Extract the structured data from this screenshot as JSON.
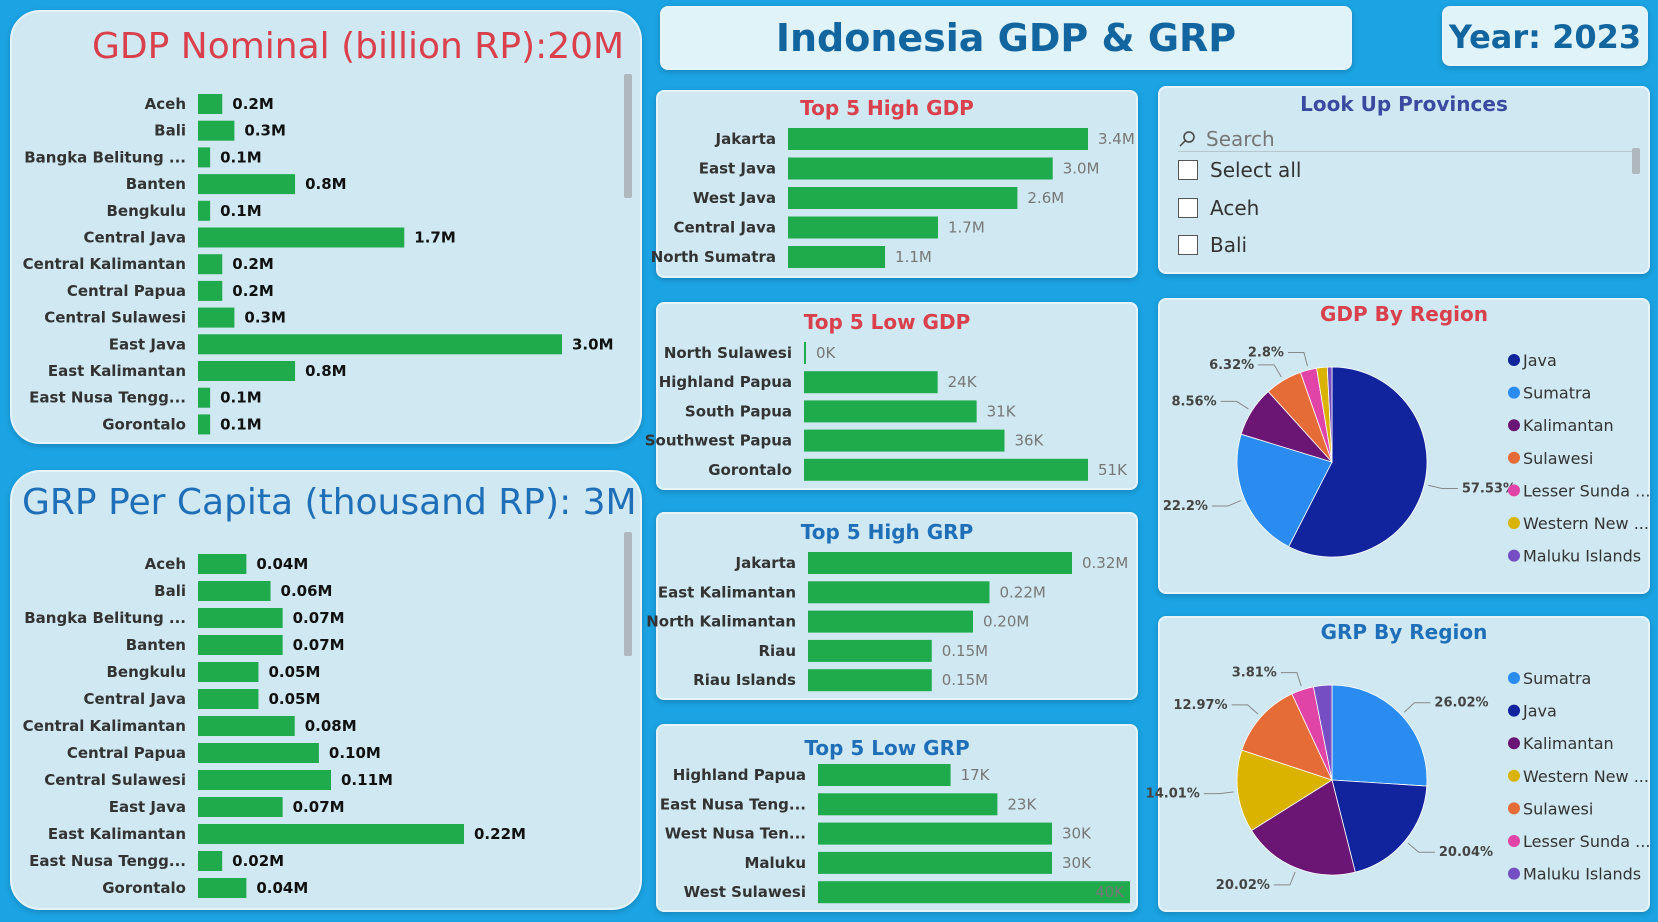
{
  "header": {
    "title": "Indonesia GDP & GRP",
    "year_label": "Year: 2023"
  },
  "gdp_nominal": {
    "title": "GDP Nominal (billion RP):20M",
    "categories": [
      "Aceh",
      "Bali",
      "Bangka Belitung ...",
      "Banten",
      "Bengkulu",
      "Central Java",
      "Central Kalimantan",
      "Central Papua",
      "Central Sulawesi",
      "East Java",
      "East Kalimantan",
      "East Nusa Tengg...",
      "Gorontalo"
    ],
    "values": [
      0.2,
      0.3,
      0.1,
      0.8,
      0.1,
      1.7,
      0.2,
      0.2,
      0.3,
      3.0,
      0.8,
      0.1,
      0.1
    ],
    "labels": [
      "0.2M",
      "0.3M",
      "0.1M",
      "0.8M",
      "0.1M",
      "1.7M",
      "0.2M",
      "0.2M",
      "0.3M",
      "3.0M",
      "0.8M",
      "0.1M",
      "0.1M"
    ]
  },
  "grp_per_capita": {
    "title": "GRP Per Capita (thousand RP): 3M",
    "categories": [
      "Aceh",
      "Bali",
      "Bangka Belitung ...",
      "Banten",
      "Bengkulu",
      "Central Java",
      "Central Kalimantan",
      "Central Papua",
      "Central Sulawesi",
      "East Java",
      "East Kalimantan",
      "East Nusa Tengg...",
      "Gorontalo"
    ],
    "values": [
      0.04,
      0.06,
      0.07,
      0.07,
      0.05,
      0.05,
      0.08,
      0.1,
      0.11,
      0.07,
      0.22,
      0.02,
      0.04
    ],
    "labels": [
      "0.04M",
      "0.06M",
      "0.07M",
      "0.07M",
      "0.05M",
      "0.05M",
      "0.08M",
      "0.10M",
      "0.11M",
      "0.07M",
      "0.22M",
      "0.02M",
      "0.04M"
    ]
  },
  "top5_high_gdp": {
    "title": "Top 5 High GDP",
    "categories": [
      "Jakarta",
      "East Java",
      "West Java",
      "Central Java",
      "North Sumatra"
    ],
    "values": [
      3.4,
      3.0,
      2.6,
      1.7,
      1.1
    ],
    "labels": [
      "3.4M",
      "3.0M",
      "2.6M",
      "1.7M",
      "1.1M"
    ]
  },
  "top5_low_gdp": {
    "title": "Top 5 Low GDP",
    "categories": [
      "North Sulawesi",
      "Highland Papua",
      "South Papua",
      "Southwest Papua",
      "Gorontalo"
    ],
    "values": [
      0,
      24,
      31,
      36,
      51
    ],
    "labels": [
      "0K",
      "24K",
      "31K",
      "36K",
      "51K"
    ]
  },
  "top5_high_grp": {
    "title": "Top 5 High GRP",
    "categories": [
      "Jakarta",
      "East Kalimantan",
      "North Kalimantan",
      "Riau",
      "Riau Islands"
    ],
    "values": [
      0.32,
      0.22,
      0.2,
      0.15,
      0.15
    ],
    "labels": [
      "0.32M",
      "0.22M",
      "0.20M",
      "0.15M",
      "0.15M"
    ]
  },
  "top5_low_grp": {
    "title": "Top 5 Low GRP",
    "categories": [
      "Highland Papua",
      "East Nusa Teng...",
      "West Nusa Ten...",
      "Maluku",
      "West Sulawesi"
    ],
    "values": [
      17,
      23,
      30,
      30,
      40
    ],
    "labels": [
      "17K",
      "23K",
      "30K",
      "30K",
      "40K"
    ]
  },
  "lookup": {
    "title": "Look Up Provinces",
    "search_placeholder": "Search",
    "items": [
      "Select all",
      "Aceh",
      "Bali"
    ]
  },
  "gdp_by_region": {
    "title": "GDP By Region",
    "slices": [
      {
        "name": "Java",
        "value": 57.53,
        "label": "57.53%",
        "color": "#12239e"
      },
      {
        "name": "Sumatra",
        "value": 22.2,
        "label": "22.2%",
        "color": "#2a8cf0"
      },
      {
        "name": "Kalimantan",
        "value": 8.56,
        "label": "8.56%",
        "color": "#6b1674"
      },
      {
        "name": "Sulawesi",
        "value": 6.32,
        "label": "6.32%",
        "color": "#e66c37"
      },
      {
        "name": "Lesser Sunda ...",
        "value": 2.8,
        "label": "2.8%",
        "color": "#e044a7"
      },
      {
        "name": "Western New ...",
        "value": 1.8,
        "label": "",
        "color": "#d9b300"
      },
      {
        "name": "Maluku Islands",
        "value": 0.79,
        "label": "",
        "color": "#744ec2"
      }
    ],
    "legend": [
      "Java",
      "Sumatra",
      "Kalimantan",
      "Sulawesi",
      "Lesser Sunda ...",
      "Western New ...",
      "Maluku Islands"
    ]
  },
  "grp_by_region": {
    "title": "GRP By Region",
    "slices": [
      {
        "name": "Sumatra",
        "value": 26.02,
        "label": "26.02%",
        "color": "#2a8cf0"
      },
      {
        "name": "Java",
        "value": 20.04,
        "label": "20.04%",
        "color": "#12239e"
      },
      {
        "name": "Kalimantan",
        "value": 20.02,
        "label": "20.02%",
        "color": "#6b1674"
      },
      {
        "name": "Western New ...",
        "value": 14.01,
        "label": "14.01%",
        "color": "#d9b300"
      },
      {
        "name": "Sulawesi",
        "value": 12.97,
        "label": "12.97%",
        "color": "#e66c37"
      },
      {
        "name": "Lesser Sunda ...",
        "value": 3.81,
        "label": "3.81%",
        "color": "#e044a7"
      },
      {
        "name": "Maluku Islands",
        "value": 3.13,
        "label": "",
        "color": "#744ec2"
      }
    ],
    "legend": [
      "Sumatra",
      "Java",
      "Kalimantan",
      "Western New ...",
      "Sulawesi",
      "Lesser Sunda ...",
      "Maluku Islands"
    ]
  },
  "colors": {
    "bar": "#1fab4c",
    "gdp_title": "#d9404c",
    "grp_title": "#1f6fb8",
    "header_title": "#12659e"
  }
}
